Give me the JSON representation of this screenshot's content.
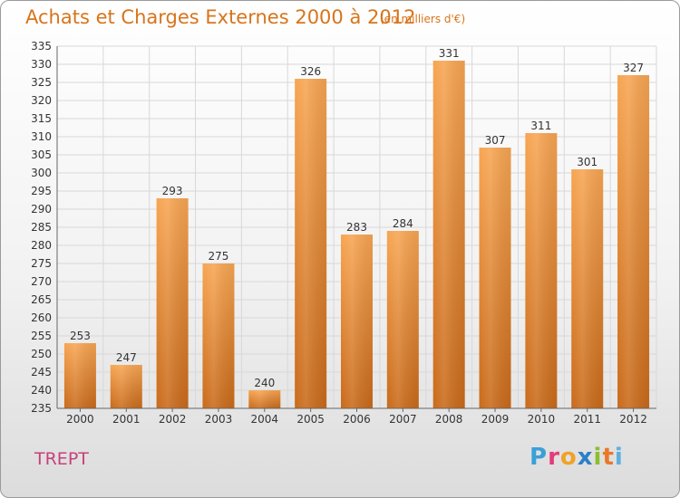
{
  "header": {
    "title": "Achats et Charges Externes 2000 à 2012",
    "subtitle": "(en milliers d'€)"
  },
  "commune": "TREPT",
  "logo": {
    "letters": [
      "P",
      "r",
      "o",
      "x",
      "i",
      "t",
      "i"
    ],
    "colors": [
      "#3aa0d8",
      "#e53a7a",
      "#f2a127",
      "#2a7fc8",
      "#8bbf2e",
      "#e8792a",
      "#5bb0e0"
    ]
  },
  "colors": {
    "bar_light": "#f7a552",
    "bar_dark": "#c96a1a",
    "grid": "#d8d8d8",
    "axis": "#666666"
  },
  "chart_data": {
    "type": "bar",
    "title": "Achats et Charges Externes 2000 à 2012",
    "subtitle": "(en milliers d'€)",
    "xlabel": "",
    "ylabel": "",
    "categories": [
      "2000",
      "2001",
      "2002",
      "2003",
      "2004",
      "2005",
      "2006",
      "2007",
      "2008",
      "2009",
      "2010",
      "2011",
      "2012"
    ],
    "values": [
      253,
      247,
      293,
      275,
      240,
      326,
      283,
      284,
      331,
      307,
      311,
      301,
      327
    ],
    "ylim": [
      235,
      335
    ],
    "ytick_step": 5,
    "grid": true
  }
}
